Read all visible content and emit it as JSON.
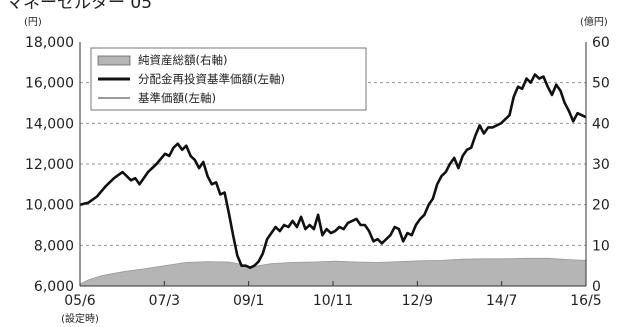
{
  "chart_data": {
    "type": "line",
    "title_fragment": "マネーセルター 05",
    "y_left_unit": "(円)",
    "y_right_unit": "(億円)",
    "y_left_ticks": [
      "18,000",
      "16,000",
      "14,000",
      "12,000",
      "10,000",
      "8,000",
      "6,000"
    ],
    "y_right_ticks": [
      "60",
      "50",
      "40",
      "30",
      "20",
      "10",
      "0"
    ],
    "x_ticks": [
      "05/6",
      "07/3",
      "09/1",
      "10/11",
      "12/9",
      "14/7",
      "16/5"
    ],
    "x_first_sub": "(設定時)",
    "ylim_left": [
      6000,
      18000
    ],
    "ylim_right": [
      0,
      60
    ],
    "grid": "dashed-horizontal",
    "legend_position": "top-left",
    "legend": [
      {
        "label": "純資産総額(右軸)",
        "style": "area-gray"
      },
      {
        "label": "分配金再投資基準価額(左軸)",
        "style": "line-black"
      },
      {
        "label": "基準価額(左軸)",
        "style": "line-gray"
      }
    ],
    "colors": {
      "nav_line": "#111111",
      "base_line": "#9a9a9a",
      "area_fill": "#b5b5b5",
      "grid": "#9a9a9a"
    },
    "series": [
      {
        "name": "分配金再投資基準価額(左軸)",
        "axis": "left",
        "points": [
          [
            0,
            10000
          ],
          [
            2,
            10100
          ],
          [
            4,
            10400
          ],
          [
            6,
            10900
          ],
          [
            8,
            11300
          ],
          [
            10,
            11600
          ],
          [
            11,
            11400
          ],
          [
            12,
            11200
          ],
          [
            13,
            11300
          ],
          [
            14,
            11000
          ],
          [
            16,
            11600
          ],
          [
            18,
            12000
          ],
          [
            20,
            12500
          ],
          [
            21,
            12400
          ],
          [
            22,
            12800
          ],
          [
            23,
            13000
          ],
          [
            24,
            12700
          ],
          [
            25,
            12900
          ],
          [
            26,
            12400
          ],
          [
            27,
            12200
          ],
          [
            28,
            11800
          ],
          [
            29,
            12100
          ],
          [
            30,
            11400
          ],
          [
            31,
            11000
          ],
          [
            32,
            11100
          ],
          [
            33,
            10500
          ],
          [
            34,
            10600
          ],
          [
            35,
            9600
          ],
          [
            36,
            8500
          ],
          [
            37,
            7500
          ],
          [
            38,
            7000
          ],
          [
            39,
            7000
          ],
          [
            40,
            6900
          ],
          [
            41,
            7000
          ],
          [
            42,
            7200
          ],
          [
            43,
            7600
          ],
          [
            44,
            8300
          ],
          [
            45,
            8600
          ],
          [
            46,
            8900
          ],
          [
            47,
            8700
          ],
          [
            48,
            9000
          ],
          [
            49,
            8900
          ],
          [
            50,
            9200
          ],
          [
            51,
            8900
          ],
          [
            52,
            9400
          ],
          [
            53,
            8800
          ],
          [
            54,
            9000
          ],
          [
            55,
            8800
          ],
          [
            56,
            9500
          ],
          [
            57,
            8500
          ],
          [
            58,
            8800
          ],
          [
            59,
            8600
          ],
          [
            60,
            8700
          ],
          [
            61,
            8900
          ],
          [
            62,
            8800
          ],
          [
            63,
            9100
          ],
          [
            64,
            9200
          ],
          [
            65,
            9300
          ],
          [
            66,
            9000
          ],
          [
            67,
            9000
          ],
          [
            68,
            8700
          ],
          [
            69,
            8200
          ],
          [
            70,
            8300
          ],
          [
            71,
            8100
          ],
          [
            72,
            8300
          ],
          [
            73,
            8500
          ],
          [
            74,
            8900
          ],
          [
            75,
            8800
          ],
          [
            76,
            8200
          ],
          [
            77,
            8600
          ],
          [
            78,
            8500
          ],
          [
            79,
            9000
          ],
          [
            80,
            9300
          ],
          [
            81,
            9500
          ],
          [
            82,
            10000
          ],
          [
            83,
            10300
          ],
          [
            84,
            11000
          ],
          [
            85,
            11400
          ],
          [
            86,
            11600
          ],
          [
            87,
            12000
          ],
          [
            88,
            12300
          ],
          [
            89,
            11800
          ],
          [
            90,
            12400
          ],
          [
            91,
            12700
          ],
          [
            92,
            12800
          ],
          [
            93,
            13400
          ],
          [
            94,
            13900
          ],
          [
            95,
            13500
          ],
          [
            96,
            13800
          ],
          [
            97,
            13800
          ],
          [
            98,
            13900
          ],
          [
            99,
            14000
          ],
          [
            100,
            14200
          ],
          [
            101,
            14400
          ],
          [
            102,
            15300
          ],
          [
            103,
            15800
          ],
          [
            104,
            15700
          ],
          [
            105,
            16200
          ],
          [
            106,
            16000
          ],
          [
            107,
            16400
          ],
          [
            108,
            16200
          ],
          [
            109,
            16300
          ],
          [
            110,
            15800
          ],
          [
            111,
            15400
          ],
          [
            112,
            15900
          ],
          [
            113,
            15600
          ],
          [
            114,
            15000
          ],
          [
            115,
            14600
          ],
          [
            116,
            14100
          ],
          [
            117,
            14500
          ],
          [
            118,
            14400
          ],
          [
            119,
            14300
          ]
        ]
      },
      {
        "name": "基準価額(左軸)",
        "axis": "left",
        "points": [
          [
            0,
            10000
          ],
          [
            2,
            10100
          ],
          [
            4,
            10400
          ],
          [
            6,
            10900
          ],
          [
            8,
            11300
          ],
          [
            10,
            11600
          ],
          [
            11,
            11400
          ],
          [
            12,
            11200
          ],
          [
            13,
            11300
          ],
          [
            14,
            11000
          ],
          [
            16,
            11600
          ],
          [
            18,
            12000
          ],
          [
            20,
            12500
          ],
          [
            21,
            12400
          ],
          [
            22,
            12800
          ],
          [
            23,
            13000
          ],
          [
            24,
            12700
          ],
          [
            25,
            12900
          ],
          [
            26,
            12400
          ],
          [
            27,
            12200
          ],
          [
            28,
            11800
          ],
          [
            29,
            12100
          ],
          [
            30,
            11400
          ],
          [
            31,
            11000
          ],
          [
            32,
            11100
          ],
          [
            33,
            10500
          ],
          [
            34,
            10600
          ],
          [
            35,
            9600
          ],
          [
            36,
            8500
          ],
          [
            37,
            7500
          ],
          [
            38,
            7000
          ],
          [
            39,
            7000
          ],
          [
            40,
            6900
          ],
          [
            41,
            7000
          ],
          [
            42,
            7200
          ],
          [
            43,
            7600
          ],
          [
            44,
            8300
          ],
          [
            45,
            8600
          ],
          [
            46,
            8900
          ],
          [
            47,
            8700
          ],
          [
            48,
            9000
          ],
          [
            49,
            8900
          ],
          [
            50,
            9200
          ],
          [
            51,
            8900
          ],
          [
            52,
            9400
          ],
          [
            53,
            8800
          ],
          [
            54,
            9000
          ],
          [
            55,
            8800
          ],
          [
            56,
            9500
          ],
          [
            57,
            8500
          ],
          [
            58,
            8800
          ],
          [
            59,
            8600
          ],
          [
            60,
            8700
          ],
          [
            61,
            8900
          ],
          [
            62,
            8800
          ],
          [
            63,
            9100
          ],
          [
            64,
            9200
          ],
          [
            65,
            9300
          ],
          [
            66,
            9000
          ],
          [
            67,
            9000
          ],
          [
            68,
            8700
          ],
          [
            69,
            8200
          ],
          [
            70,
            8300
          ],
          [
            71,
            8100
          ],
          [
            72,
            8300
          ],
          [
            73,
            8500
          ],
          [
            74,
            8900
          ],
          [
            75,
            8800
          ],
          [
            76,
            8200
          ],
          [
            77,
            8600
          ],
          [
            78,
            8500
          ],
          [
            79,
            9000
          ],
          [
            80,
            9300
          ],
          [
            81,
            9500
          ],
          [
            82,
            10000
          ],
          [
            83,
            10300
          ],
          [
            84,
            11000
          ],
          [
            85,
            11400
          ],
          [
            86,
            11600
          ],
          [
            87,
            12000
          ],
          [
            88,
            12300
          ],
          [
            89,
            11800
          ],
          [
            90,
            12400
          ],
          [
            91,
            12700
          ],
          [
            92,
            12800
          ],
          [
            93,
            13400
          ],
          [
            94,
            13900
          ],
          [
            95,
            13500
          ],
          [
            96,
            13800
          ],
          [
            97,
            13800
          ],
          [
            98,
            13900
          ],
          [
            99,
            14000
          ],
          [
            100,
            14200
          ],
          [
            101,
            14400
          ],
          [
            102,
            15300
          ],
          [
            103,
            15800
          ],
          [
            104,
            15700
          ],
          [
            105,
            16200
          ],
          [
            106,
            16000
          ],
          [
            107,
            16400
          ],
          [
            108,
            16200
          ],
          [
            109,
            16300
          ],
          [
            110,
            15800
          ],
          [
            111,
            15400
          ],
          [
            112,
            15900
          ],
          [
            113,
            15600
          ],
          [
            114,
            15000
          ],
          [
            115,
            14600
          ],
          [
            116,
            14100
          ],
          [
            117,
            14500
          ],
          [
            118,
            14400
          ],
          [
            119,
            14300
          ]
        ]
      },
      {
        "name": "純資産総額(右軸)",
        "axis": "right",
        "points": [
          [
            0,
            0.5
          ],
          [
            2,
            1.5
          ],
          [
            5,
            2.5
          ],
          [
            10,
            3.5
          ],
          [
            15,
            4.2
          ],
          [
            20,
            5.0
          ],
          [
            25,
            5.8
          ],
          [
            30,
            6.0
          ],
          [
            35,
            5.9
          ],
          [
            38,
            5.3
          ],
          [
            40,
            4.5
          ],
          [
            42,
            5.0
          ],
          [
            45,
            5.5
          ],
          [
            50,
            5.8
          ],
          [
            55,
            5.9
          ],
          [
            60,
            6.1
          ],
          [
            65,
            5.9
          ],
          [
            70,
            5.8
          ],
          [
            75,
            6.0
          ],
          [
            80,
            6.2
          ],
          [
            85,
            6.3
          ],
          [
            90,
            6.6
          ],
          [
            95,
            6.7
          ],
          [
            100,
            6.7
          ],
          [
            105,
            6.8
          ],
          [
            110,
            6.8
          ],
          [
            115,
            6.5
          ],
          [
            119,
            6.3
          ]
        ]
      }
    ]
  }
}
